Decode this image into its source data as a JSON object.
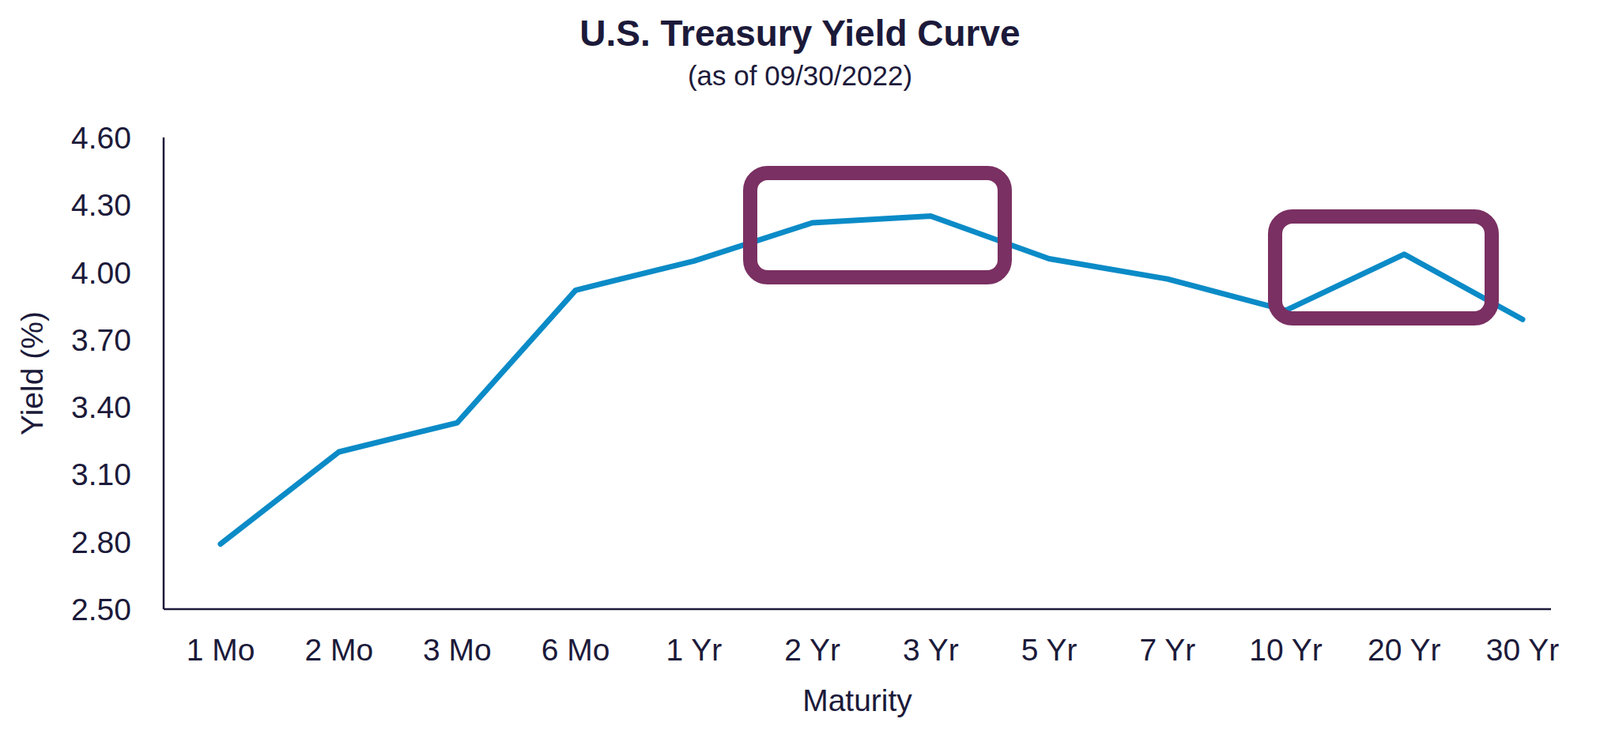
{
  "chart_data": {
    "type": "line",
    "title": "U.S. Treasury Yield Curve",
    "subtitle": "(as of 09/30/2022)",
    "x_label": "Maturity",
    "y_label": "Yield (%)",
    "categories": [
      "1 Mo",
      "2 Mo",
      "3 Mo",
      "6 Mo",
      "1 Yr",
      "2 Yr",
      "3 Yr",
      "5 Yr",
      "7 Yr",
      "10 Yr",
      "20 Yr",
      "30 Yr"
    ],
    "values": [
      2.79,
      3.2,
      3.33,
      3.92,
      4.05,
      4.22,
      4.25,
      4.06,
      3.97,
      3.83,
      4.08,
      3.79
    ],
    "color": "#0b8bc7",
    "ylim": [
      2.5,
      4.6
    ],
    "yticks": [
      {
        "value": 2.5,
        "label": "2.50"
      },
      {
        "value": 2.8,
        "label": "2.80"
      },
      {
        "value": 3.1,
        "label": "3.10"
      },
      {
        "value": 3.4,
        "label": "3.40"
      },
      {
        "value": 3.7,
        "label": "3.70"
      },
      {
        "value": 4.0,
        "label": "4.00"
      },
      {
        "value": 4.3,
        "label": "4.30"
      },
      {
        "value": 4.6,
        "label": "4.60"
      }
    ],
    "grid": false
  }
}
